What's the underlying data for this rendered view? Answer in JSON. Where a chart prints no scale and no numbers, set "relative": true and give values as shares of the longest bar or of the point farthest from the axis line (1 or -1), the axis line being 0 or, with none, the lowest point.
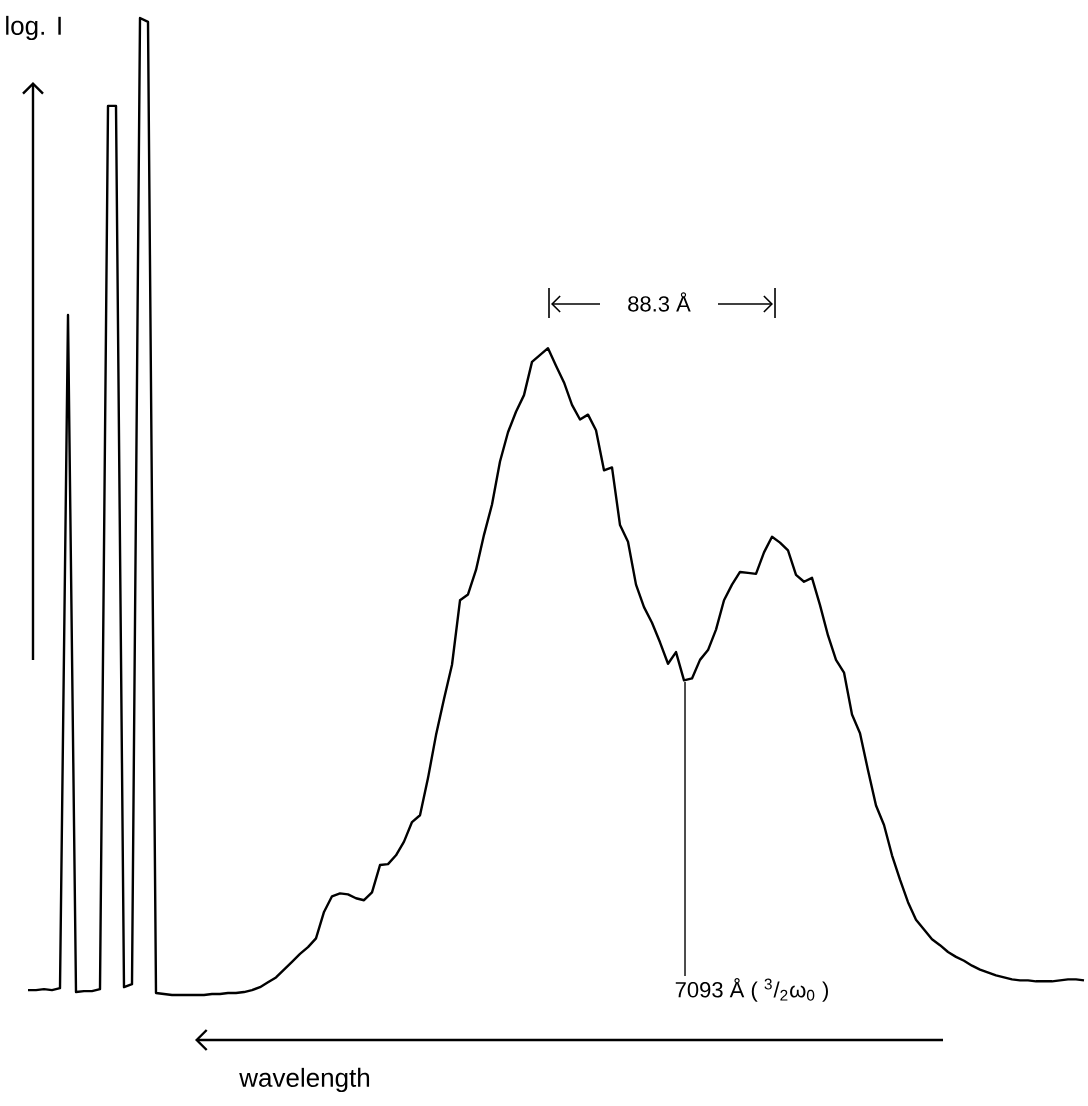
{
  "chart_data": {
    "type": "line",
    "relative": true,
    "xlabel": "wavelength",
    "ylabel": "log. I",
    "color": "#000000",
    "annotations": [
      "88.3 Å",
      "7093 Å ( $^{3}$/$_{2}$ω$_{0}$ )"
    ],
    "categories": [
      null,
      null,
      null,
      null,
      null,
      null,
      null,
      null,
      null,
      null,
      null,
      null,
      null,
      null,
      null,
      null,
      null,
      null,
      null,
      null,
      null,
      null,
      null,
      null,
      null,
      null,
      null,
      null,
      null,
      null,
      null,
      null,
      null,
      null,
      null,
      null,
      null,
      null,
      null,
      null,
      null,
      null,
      null,
      null,
      null,
      null,
      null,
      null,
      null,
      null,
      null,
      null,
      null,
      null,
      null,
      null,
      null,
      null,
      null,
      null,
      null,
      null,
      null,
      null,
      null,
      null,
      null,
      null,
      null,
      null,
      null,
      null,
      null,
      null,
      null,
      null,
      null,
      null,
      null,
      null,
      null,
      null,
      null,
      null,
      null,
      null,
      null,
      null,
      null,
      null,
      null,
      null,
      null,
      null,
      null,
      null,
      null,
      null,
      null,
      null,
      null,
      null,
      null,
      null,
      null,
      null,
      null,
      null,
      null,
      null,
      null,
      null,
      null,
      null,
      null,
      null,
      null,
      null,
      null,
      null,
      null,
      null,
      null,
      null,
      null,
      null,
      null,
      null,
      null,
      null,
      null,
      null,
      null
    ],
    "values": [
      0.005,
      0.005,
      0.006,
      0.005,
      0.007,
      0.696,
      0.003,
      0.004,
      0.004,
      0.006,
      0.91,
      0.91,
      0.008,
      0.011,
      1.0,
      0.996,
      0.002,
      0.001,
      0,
      0,
      0,
      0,
      0,
      0.001,
      0.001,
      0.002,
      0.002,
      0.003,
      0.005,
      0.008,
      0.013,
      0.018,
      0.026,
      0.034,
      0.042,
      0.049,
      0.058,
      0.085,
      0.101,
      0.104,
      0.103,
      0.099,
      0.097,
      0.105,
      0.133,
      0.134,
      0.143,
      0.157,
      0.177,
      0.184,
      0.222,
      0.266,
      0.303,
      0.338,
      0.404,
      0.41,
      0.435,
      0.471,
      0.502,
      0.546,
      0.576,
      0.597,
      0.614,
      0.648,
      0.655,
      0.662,
      0.644,
      0.627,
      0.604,
      0.589,
      0.594,
      0.578,
      0.537,
      0.54,
      0.481,
      0.464,
      0.42,
      0.397,
      0.381,
      0.361,
      0.339,
      0.351,
      0.322,
      0.324,
      0.343,
      0.353,
      0.374,
      0.404,
      0.42,
      0.433,
      0.432,
      0.431,
      0.453,
      0.469,
      0.463,
      0.455,
      0.43,
      0.423,
      0.427,
      0.399,
      0.368,
      0.343,
      0.33,
      0.287,
      0.268,
      0.23,
      0.194,
      0.174,
      0.143,
      0.118,
      0.095,
      0.077,
      0.067,
      0.057,
      0.051,
      0.044,
      0.039,
      0.035,
      0.03,
      0.026,
      0.023,
      0.02,
      0.018,
      0.016,
      0.015,
      0.015,
      0.014,
      0.014,
      0.014,
      0.015,
      0.016,
      0.016,
      0.015
    ]
  }
}
